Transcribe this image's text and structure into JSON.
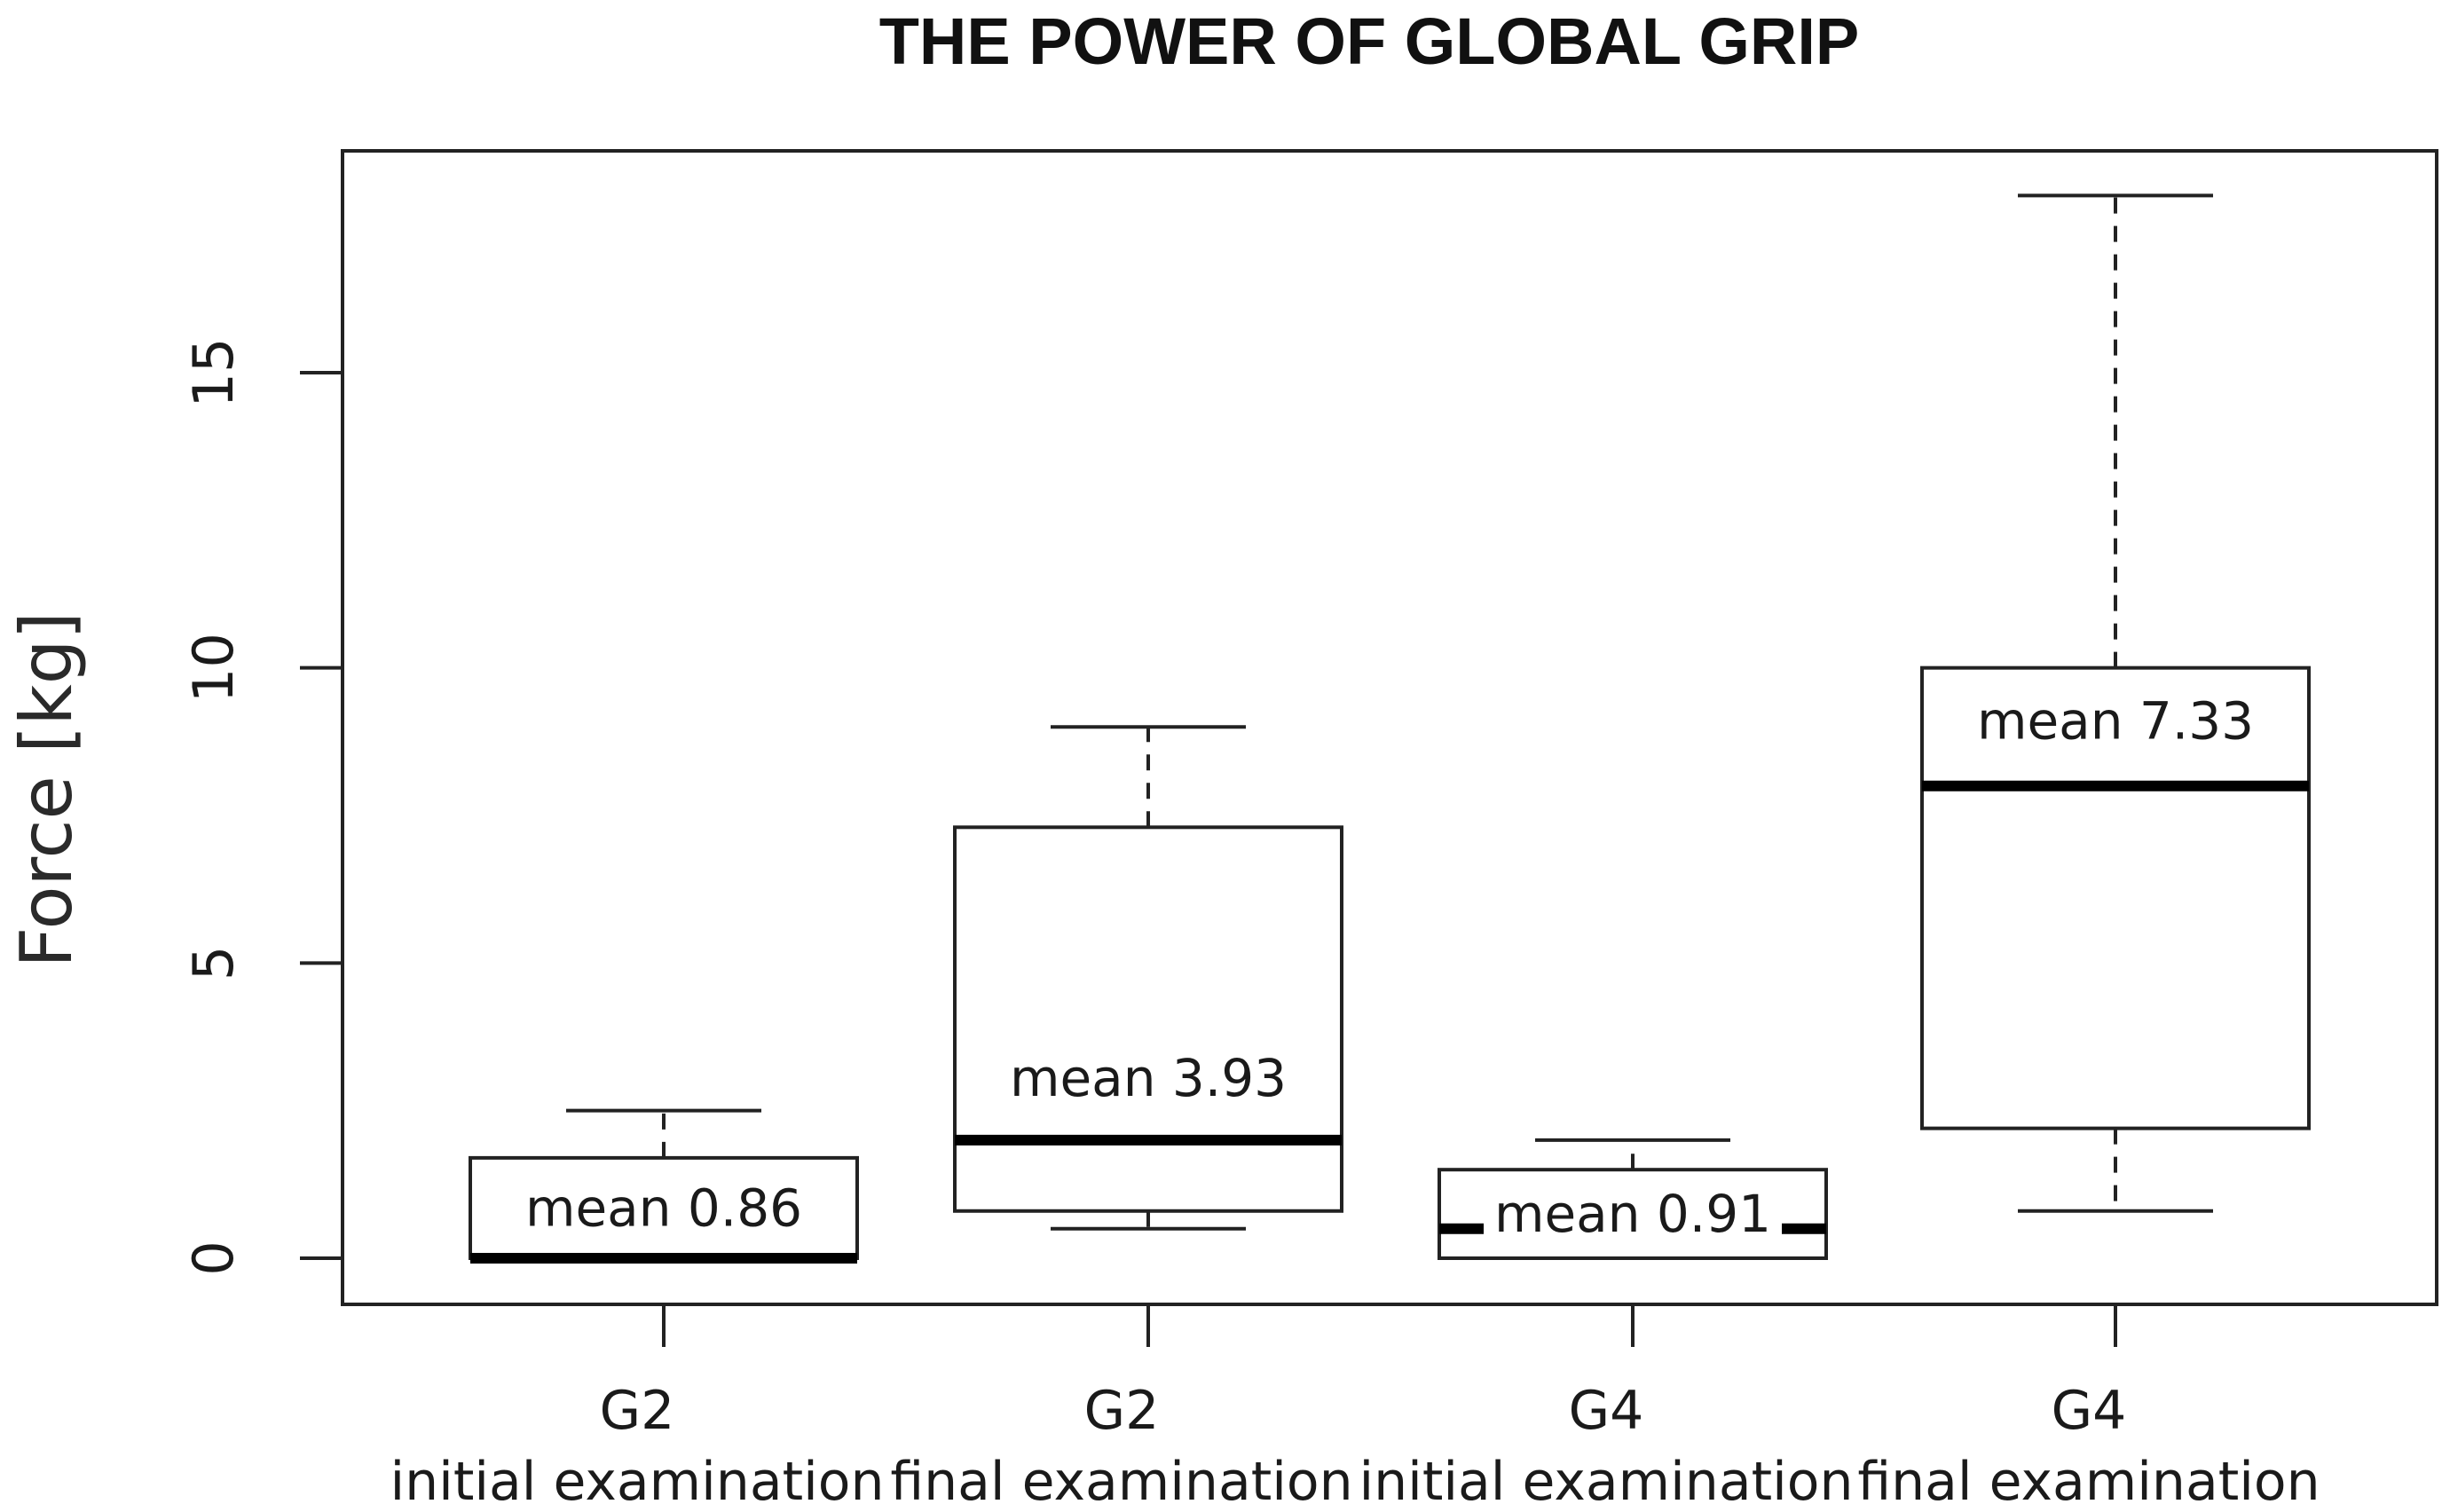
{
  "chart_data": {
    "type": "box",
    "title": "THE POWER OF GLOBAL GRIP",
    "ylabel": "Force  [kg]",
    "xlabel": "",
    "ylim": [
      -0.8,
      18.8
    ],
    "yticks": [
      0,
      5,
      10,
      15
    ],
    "grid": false,
    "categories": [
      {
        "group": "G2",
        "sub": "initial examination"
      },
      {
        "group": "G2",
        "sub": "final examination"
      },
      {
        "group": "G4",
        "sub": "initial examination"
      },
      {
        "group": "G4",
        "sub": "final examination"
      }
    ],
    "boxes": [
      {
        "whisker_low": 0,
        "q1": 0,
        "median": 0,
        "q3": 1.7,
        "whisker_high": 2.5,
        "mean_label": "mean 0.86"
      },
      {
        "whisker_low": 0.5,
        "q1": 0.8,
        "median": 2.0,
        "q3": 7.3,
        "whisker_high": 9.0,
        "mean_label": "mean 3.93"
      },
      {
        "whisker_low": 0,
        "q1": 0,
        "median": 0.5,
        "q3": 1.5,
        "whisker_high": 2.0,
        "mean_label": "mean 0.91"
      },
      {
        "whisker_low": 0.8,
        "q1": 2.2,
        "median": 8.0,
        "q3": 10.0,
        "whisker_high": 18.0,
        "mean_label": "mean 7.33"
      }
    ]
  }
}
